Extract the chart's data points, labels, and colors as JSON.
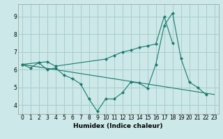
{
  "background_color": "#cce8e8",
  "grid_color": "#aacccc",
  "line_color": "#1a7a6a",
  "xlabel": "Humidex (Indice chaleur)",
  "xlim": [
    -0.5,
    23.5
  ],
  "ylim": [
    3.5,
    9.7
  ],
  "yticks": [
    4,
    5,
    6,
    7,
    8,
    9
  ],
  "xticks": [
    0,
    1,
    2,
    3,
    4,
    5,
    6,
    7,
    8,
    9,
    10,
    11,
    12,
    13,
    14,
    15,
    16,
    17,
    18,
    19,
    20,
    21,
    22,
    23
  ],
  "curve1": {
    "x": [
      0,
      1,
      2,
      3,
      4,
      5,
      6,
      7,
      8,
      9,
      10,
      11,
      12,
      13,
      14,
      15,
      16,
      17,
      18,
      19,
      20,
      21,
      22
    ],
    "y": [
      6.3,
      6.1,
      6.4,
      6.0,
      6.1,
      5.7,
      5.5,
      5.2,
      4.35,
      3.65,
      4.35,
      4.35,
      4.7,
      5.3,
      5.25,
      4.95,
      6.3,
      8.5,
      9.2,
      6.65,
      5.3,
      5.0,
      4.6
    ]
  },
  "curve2": {
    "x": [
      0,
      2,
      3,
      4,
      10,
      11,
      12,
      13,
      14,
      15,
      16,
      17,
      18
    ],
    "y": [
      6.3,
      6.4,
      6.45,
      6.2,
      6.6,
      6.8,
      7.0,
      7.1,
      7.25,
      7.35,
      7.45,
      9.0,
      7.5
    ]
  },
  "curve3": {
    "x": [
      0,
      23
    ],
    "y": [
      6.3,
      4.6
    ]
  }
}
